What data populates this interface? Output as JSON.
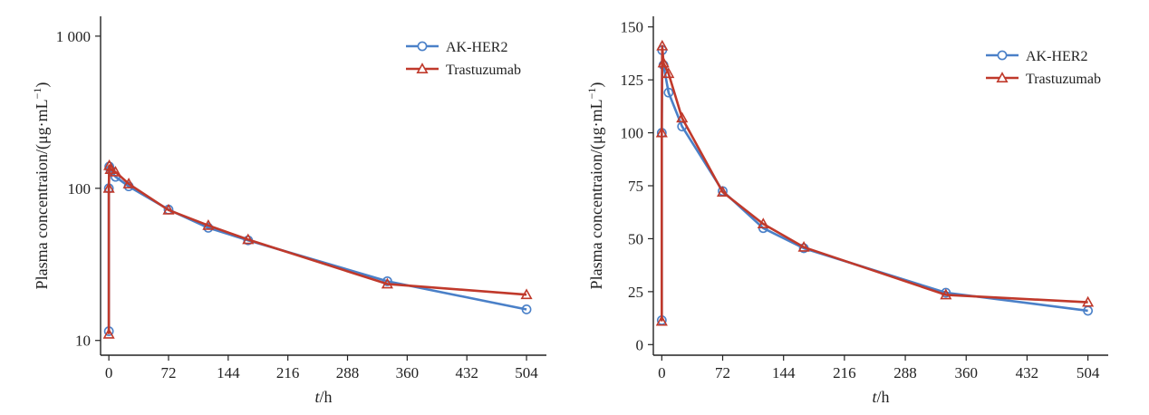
{
  "chart_data": [
    {
      "type": "line",
      "scale": "log",
      "xlabel_italic": "t",
      "xlabel_rest": "/h",
      "ylabel": "Plasma concentraion/(μg·mL",
      "ylabel_sup": "−1",
      "ylabel_close": ")",
      "xlim": [
        -10,
        528
      ],
      "ylim": [
        8,
        1350
      ],
      "xticks": [
        0,
        72,
        144,
        216,
        288,
        360,
        432,
        504
      ],
      "xtick_labels": [
        "0",
        "72",
        "144",
        "216",
        "288",
        "360",
        "432",
        "504"
      ],
      "yticks": [
        10,
        100,
        1000
      ],
      "ytick_labels": [
        "10",
        "100",
        "1 000"
      ],
      "legend_position": "top-right",
      "series": [
        {
          "name": "AK-HER2",
          "color": "#4a80c8",
          "marker": "circle",
          "points": [
            [
              0,
              11.5
            ],
            [
              0,
              100
            ],
            [
              0.5,
              139
            ],
            [
              2,
              132
            ],
            [
              8,
              119
            ],
            [
              24,
              103
            ],
            [
              72,
              72.5
            ],
            [
              120,
              55
            ],
            [
              168,
              45.5
            ],
            [
              336,
              24.5
            ],
            [
              504,
              16
            ]
          ]
        },
        {
          "name": "Trastuzumab",
          "color": "#c0392b",
          "marker": "triangle",
          "points": [
            [
              0,
              11
            ],
            [
              0,
              100
            ],
            [
              0.5,
              141
            ],
            [
              2,
              133
            ],
            [
              8,
              128
            ],
            [
              24,
              107
            ],
            [
              72,
              72
            ],
            [
              120,
              57
            ],
            [
              168,
              46
            ],
            [
              336,
              23.5
            ],
            [
              504,
              20
            ]
          ]
        }
      ]
    },
    {
      "type": "line",
      "scale": "linear",
      "xlabel_italic": "t",
      "xlabel_rest": "/h",
      "ylabel": "Plasma concentraion/(μg·mL",
      "ylabel_sup": "−1",
      "ylabel_close": ")",
      "xlim": [
        -10,
        528
      ],
      "ylim": [
        -5,
        155
      ],
      "xticks": [
        0,
        72,
        144,
        216,
        288,
        360,
        432,
        504
      ],
      "xtick_labels": [
        "0",
        "72",
        "144",
        "216",
        "288",
        "360",
        "432",
        "504"
      ],
      "yticks": [
        0,
        25,
        50,
        75,
        100,
        125,
        150
      ],
      "ytick_labels": [
        "0",
        "25",
        "50",
        "75",
        "100",
        "125",
        "150"
      ],
      "legend_position": "top-right",
      "series": [
        {
          "name": "AK-HER2",
          "color": "#4a80c8",
          "marker": "circle",
          "points": [
            [
              0,
              11.5
            ],
            [
              0,
              100
            ],
            [
              0.5,
              139
            ],
            [
              2,
              132
            ],
            [
              8,
              119
            ],
            [
              24,
              103
            ],
            [
              72,
              72.5
            ],
            [
              120,
              55
            ],
            [
              168,
              45.5
            ],
            [
              336,
              24.5
            ],
            [
              504,
              16
            ]
          ]
        },
        {
          "name": "Trastuzumab",
          "color": "#c0392b",
          "marker": "triangle",
          "points": [
            [
              0,
              11
            ],
            [
              0,
              100
            ],
            [
              0.5,
              141
            ],
            [
              2,
              133
            ],
            [
              8,
              128
            ],
            [
              24,
              107
            ],
            [
              72,
              72
            ],
            [
              120,
              57
            ],
            [
              168,
              46
            ],
            [
              336,
              23.5
            ],
            [
              504,
              20
            ]
          ]
        }
      ]
    }
  ]
}
